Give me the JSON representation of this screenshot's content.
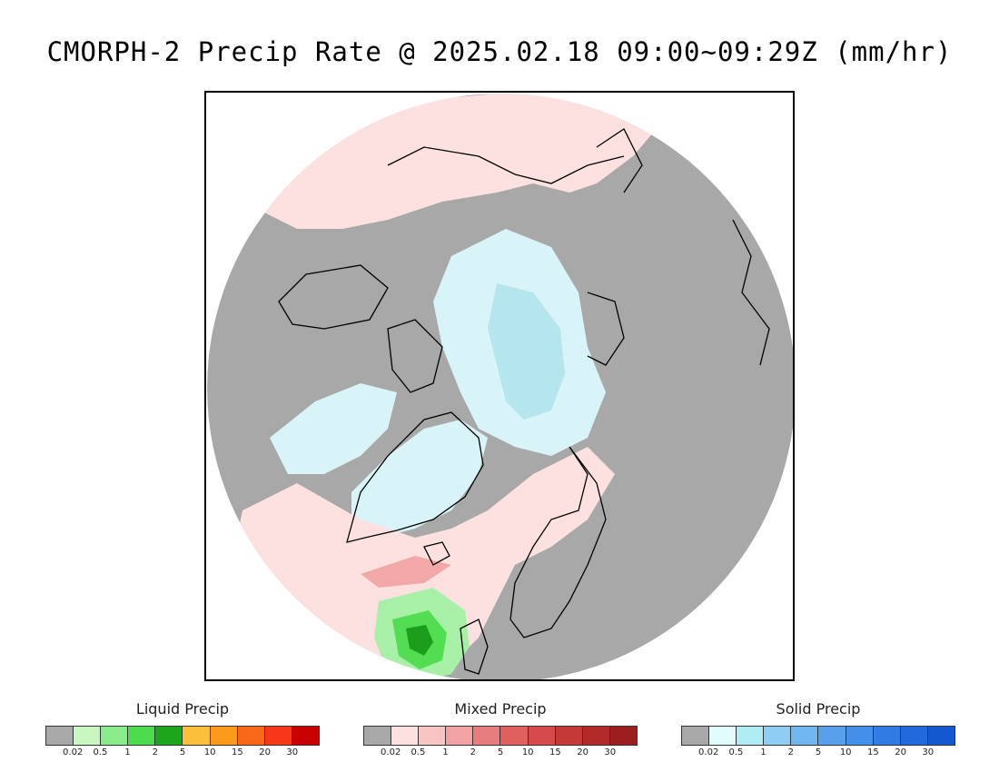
{
  "title": "CMORPH-2 Precip Rate @ 2025.02.18 09:00~09:29Z (mm/hr)",
  "map": {
    "projection": "north-polar-stereographic",
    "region": "Arctic",
    "colors": {
      "background_no_precip": "#a8a8a8",
      "mixed_light": "#fde1e1",
      "solid_light": "#d9f4f8",
      "solid_medium": "#b5e6ee",
      "liquid_light": "#a8f0a8",
      "liquid_medium": "#52dd52",
      "liquid_heavy": "#1c9e1c",
      "mixed_medium": "#f3a8a8",
      "coastline": "#000000"
    }
  },
  "legends": [
    {
      "title": "Liquid Precip",
      "colors": [
        "#a8a8a8",
        "#c8f8c0",
        "#8aeb8a",
        "#4ddc4d",
        "#1ca61c",
        "#fbbf3c",
        "#fb9a1a",
        "#f86818",
        "#f43818",
        "#c80000"
      ],
      "ticks": [
        "0.02",
        "0.5",
        "1",
        "2",
        "5",
        "10",
        "15",
        "20",
        "30"
      ]
    },
    {
      "title": "Mixed Precip",
      "colors": [
        "#a8a8a8",
        "#fde1e1",
        "#f9c4c4",
        "#f0a2a2",
        "#e87d7d",
        "#e06060",
        "#d44a4a",
        "#c63939",
        "#b22a2a",
        "#9c1f1f"
      ],
      "ticks": [
        "0.02",
        "0.5",
        "1",
        "2",
        "5",
        "10",
        "15",
        "20",
        "30"
      ]
    },
    {
      "title": "Solid Precip",
      "colors": [
        "#a8a8a8",
        "#e0fcfc",
        "#b0ecf4",
        "#90cdf4",
        "#70b6f0",
        "#58a0ec",
        "#4490e8",
        "#307ce4",
        "#2068dc",
        "#1458d0"
      ],
      "ticks": [
        "0.02",
        "0.5",
        "1",
        "2",
        "5",
        "10",
        "15",
        "20",
        "30"
      ]
    }
  ]
}
